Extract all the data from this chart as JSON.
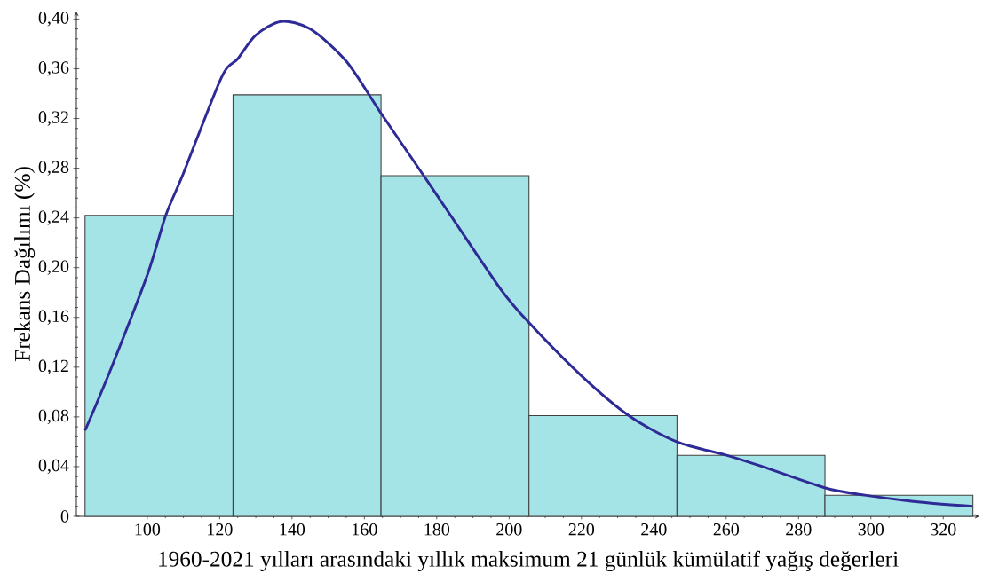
{
  "chart_data": {
    "type": "histogram",
    "xlabel": "1960-2021 yılları arasındaki yıllık maksimum 21 günlük kümülatif yağış değerleri",
    "ylabel": "Frekans Dağılımı (%)",
    "bins": [
      82.8,
      123.7,
      164.6,
      205.5,
      246.4,
      287.3,
      328.2
    ],
    "values": [
      0.242,
      0.339,
      0.274,
      0.081,
      0.049,
      0.017
    ],
    "color": "#a4e4e6",
    "series": [
      {
        "type": "line",
        "color": "#2e2a96",
        "x": [
          82.8,
          90,
          100,
          105.1,
          110,
          120.5,
          125,
          130,
          137,
          145,
          155,
          164.4,
          176.4,
          185,
          197.6,
          205.4,
          220,
          233.1,
          246.3,
          260.3,
          270,
          287.2,
          298.3,
          315,
          328.1
        ],
        "values": [
          0.069,
          0.119,
          0.194,
          0.242,
          0.276,
          0.353,
          0.368,
          0.387,
          0.398,
          0.392,
          0.366,
          0.325,
          0.274,
          0.237,
          0.183,
          0.156,
          0.113,
          0.081,
          0.06,
          0.049,
          0.04,
          0.023,
          0.017,
          0.011,
          0.008
        ]
      }
    ],
    "xlim": [
      80.4,
      330
    ],
    "ylim": [
      0,
      0.406
    ],
    "xticks": [
      100,
      120,
      140,
      160,
      180,
      200,
      220,
      240,
      260,
      280,
      300,
      320
    ],
    "yticks": [
      {
        "value": 0,
        "label": "0"
      },
      {
        "value": 0.04,
        "label": "0,04"
      },
      {
        "value": 0.08,
        "label": "0,08"
      },
      {
        "value": 0.12,
        "label": "0,12"
      },
      {
        "value": 0.16,
        "label": "0,16"
      },
      {
        "value": 0.2,
        "label": "0,20"
      },
      {
        "value": 0.24,
        "label": "0,24"
      },
      {
        "value": 0.28,
        "label": "0,28"
      },
      {
        "value": 0.32,
        "label": "0,32"
      },
      {
        "value": 0.36,
        "label": "0,36"
      },
      {
        "value": 0.4,
        "label": "0,40"
      }
    ],
    "grid": false
  }
}
